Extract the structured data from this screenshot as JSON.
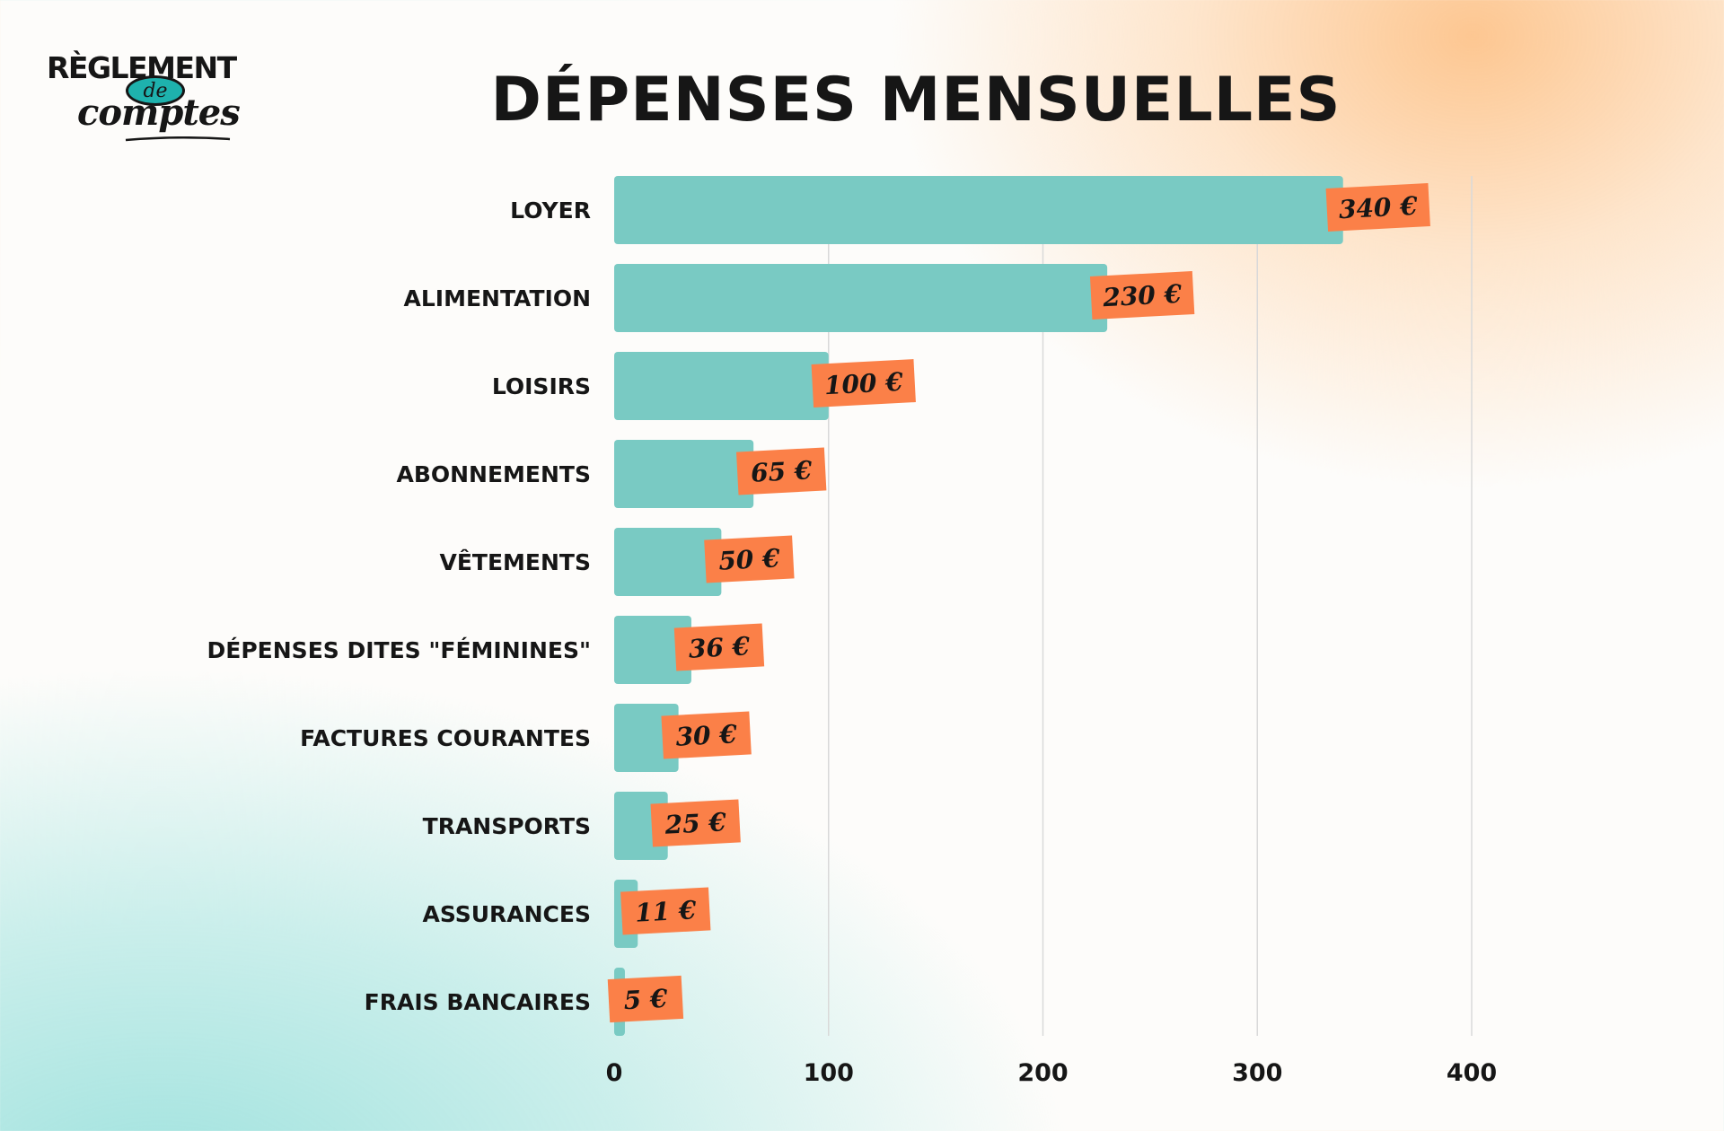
{
  "brand": {
    "logo_top": "RÈGLEMENT",
    "logo_middle": "de",
    "logo_bottom": "comptes"
  },
  "colors": {
    "bar": "#79cac3",
    "value_tag": "#fb8048",
    "text": "#161616",
    "grid": "#d9d9d9"
  },
  "chart_data": {
    "type": "bar",
    "orientation": "horizontal",
    "title": "DÉPENSES MENSUELLES",
    "xlabel": "",
    "ylabel": "",
    "categories": [
      "LOYER",
      "ALIMENTATION",
      "LOISIRS",
      "ABONNEMENTS",
      "VÊTEMENTS",
      "DÉPENSES DITES \"FÉMININES\"",
      "FACTURES COURANTES",
      "TRANSPORTS",
      "ASSURANCES",
      "FRAIS BANCAIRES"
    ],
    "values": [
      340,
      230,
      100,
      65,
      50,
      36,
      30,
      25,
      11,
      5
    ],
    "value_labels": [
      "340 €",
      "230 €",
      "100 €",
      "65 €",
      "50 €",
      "36 €",
      "30 €",
      "25 €",
      "11 €",
      "5 €"
    ],
    "xlim": [
      0,
      400
    ],
    "xticks": [
      0,
      100,
      200,
      300,
      400
    ],
    "xtick_labels": [
      "0",
      "100",
      "200",
      "300",
      "400"
    ],
    "grid": true,
    "legend": "none"
  }
}
